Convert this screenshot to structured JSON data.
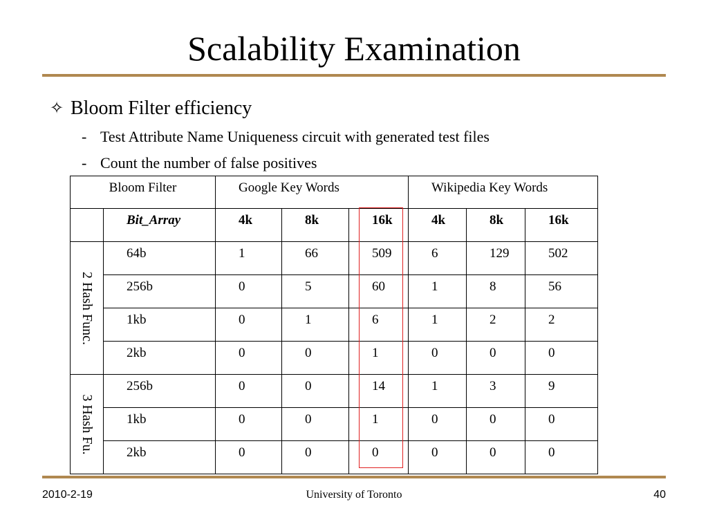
{
  "slide": {
    "title": "Scalability Examination",
    "bullet": {
      "icon": "four-pointed-star-outline-icon",
      "glyph": "✧",
      "text": "Bloom Filter efficiency"
    },
    "subbullets": [
      {
        "dash": "-",
        "text": "Test Attribute Name Uniqueness circuit with generated test files"
      },
      {
        "dash": "-",
        "text": "Count the number of false positives"
      }
    ],
    "accent_color": "#b08850",
    "highlight_color": "#e02020"
  },
  "table": {
    "header": {
      "bloom_filter": "Bloom Filter",
      "google": "Google Key Words",
      "wikipedia": "Wikipedia Key Words"
    },
    "subheader": {
      "bit_array": "Bit_Array",
      "g4": "4k",
      "g8": "8k",
      "g16": "16k",
      "w4": "4k",
      "w8": "8k",
      "w16": "16k"
    },
    "groups": [
      {
        "label": "2 Hash Func.",
        "rows": [
          {
            "size": "64b",
            "g4": "1",
            "g8": "66",
            "g16": "509",
            "w4": "6",
            "w8": "129",
            "w16": "502"
          },
          {
            "size": "256b",
            "g4": "0",
            "g8": "5",
            "g16": "60",
            "w4": "1",
            "w8": "8",
            "w16": "56"
          },
          {
            "size": "1kb",
            "g4": "0",
            "g8": "1",
            "g16": "6",
            "w4": "1",
            "w8": "2",
            "w16": "2"
          },
          {
            "size": "2kb",
            "g4": "0",
            "g8": "0",
            "g16": "1",
            "w4": "0",
            "w8": "0",
            "w16": "0"
          }
        ]
      },
      {
        "label": "3 Hash Fu.",
        "rows": [
          {
            "size": "256b",
            "g4": "0",
            "g8": "0",
            "g16": "14",
            "w4": "1",
            "w8": "3",
            "w16": "9"
          },
          {
            "size": "1kb",
            "g4": "0",
            "g8": "0",
            "g16": "1",
            "w4": "0",
            "w8": "0",
            "w16": "0"
          },
          {
            "size": "2kb",
            "g4": "0",
            "g8": "0",
            "g16": "0",
            "w4": "0",
            "w8": "0",
            "w16": "0"
          }
        ]
      }
    ]
  },
  "footer": {
    "date": "2010-2-19",
    "organization": "University of Toronto",
    "page": "40"
  }
}
